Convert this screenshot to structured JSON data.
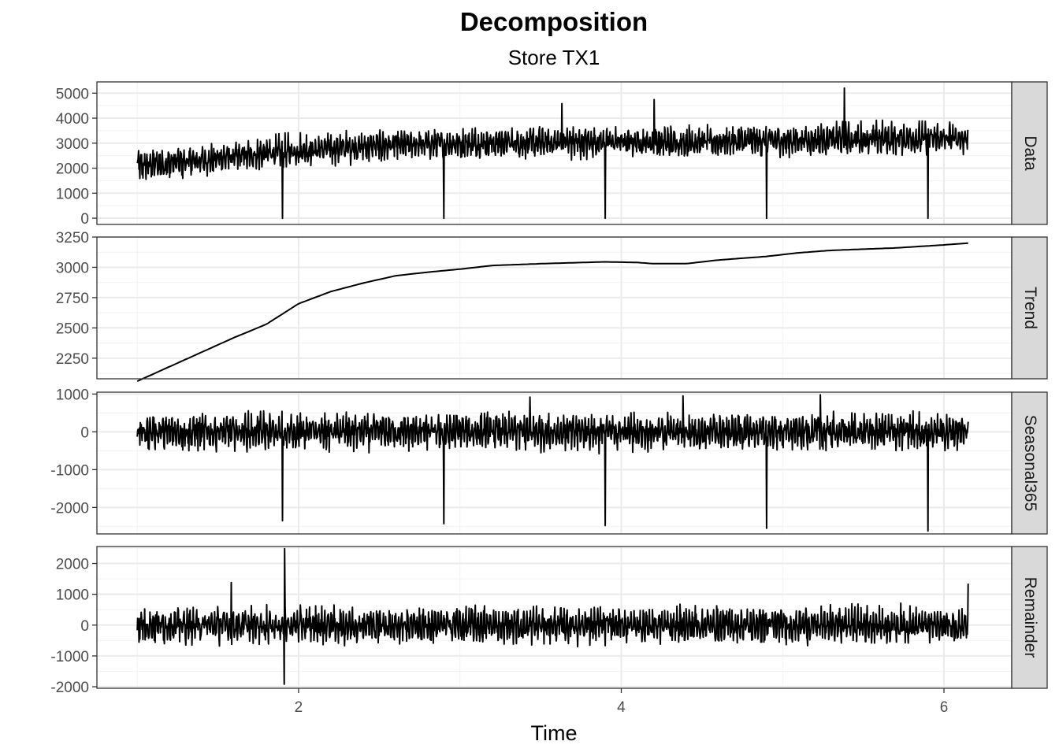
{
  "chart_data": {
    "type": "line",
    "title": "Decomposition",
    "subtitle": "Store TX1",
    "xlabel": "Time",
    "x_ticks": [
      2,
      4,
      6
    ],
    "xlim": [
      0.75,
      6.42
    ],
    "x_start": 1.0,
    "x_end": 6.15,
    "grid": true,
    "panels": [
      {
        "name": "Data",
        "ylim": [
          -250,
          5450
        ],
        "y_ticks": [
          0,
          1000,
          2000,
          3000,
          4000,
          5000
        ],
        "kind": "noisy",
        "trend_knots": [
          [
            1.0,
            2100
          ],
          [
            1.3,
            2250
          ],
          [
            1.6,
            2450
          ],
          [
            2.0,
            2700
          ],
          [
            2.4,
            2870
          ],
          [
            2.8,
            2960
          ],
          [
            3.3,
            3020
          ],
          [
            3.9,
            3045
          ],
          [
            4.3,
            3035
          ],
          [
            4.8,
            3090
          ],
          [
            5.3,
            3150
          ],
          [
            6.15,
            3200
          ]
        ],
        "base_offset": 0,
        "noise_amplitude": 550,
        "spikes": [
          [
            1.9,
            0
          ],
          [
            2.9,
            0
          ],
          [
            3.9,
            0
          ],
          [
            4.9,
            0
          ],
          [
            5.9,
            0
          ]
        ],
        "peaks": [
          [
            5.38,
            5200
          ],
          [
            3.63,
            4580
          ],
          [
            4.2,
            4740
          ]
        ]
      },
      {
        "name": "Trend",
        "ylim": [
          2080,
          3250
        ],
        "y_ticks": [
          2250,
          2500,
          2750,
          3000,
          3250
        ],
        "kind": "smooth",
        "trend_knots": [
          [
            1.0,
            2060
          ],
          [
            1.2,
            2180
          ],
          [
            1.4,
            2300
          ],
          [
            1.6,
            2420
          ],
          [
            1.8,
            2530
          ],
          [
            2.0,
            2700
          ],
          [
            2.2,
            2800
          ],
          [
            2.4,
            2870
          ],
          [
            2.6,
            2930
          ],
          [
            2.8,
            2960
          ],
          [
            3.0,
            2985
          ],
          [
            3.2,
            3015
          ],
          [
            3.5,
            3030
          ],
          [
            3.9,
            3045
          ],
          [
            4.1,
            3040
          ],
          [
            4.2,
            3030
          ],
          [
            4.4,
            3030
          ],
          [
            4.6,
            3060
          ],
          [
            4.9,
            3090
          ],
          [
            5.1,
            3120
          ],
          [
            5.3,
            3140
          ],
          [
            5.7,
            3160
          ],
          [
            6.0,
            3185
          ],
          [
            6.15,
            3200
          ]
        ]
      },
      {
        "name": "Seasonal365",
        "ylim": [
          -2700,
          1050
        ],
        "y_ticks": [
          -2000,
          -1000,
          0,
          1000
        ],
        "kind": "noisy",
        "base_offset": 0,
        "noise_amplitude": 420,
        "spikes": [
          [
            1.9,
            -2350
          ],
          [
            2.9,
            -2430
          ],
          [
            3.9,
            -2480
          ],
          [
            4.9,
            -2550
          ],
          [
            5.9,
            -2620
          ]
        ],
        "peaks": [
          [
            5.23,
            980
          ],
          [
            4.38,
            950
          ],
          [
            3.43,
            920
          ]
        ]
      },
      {
        "name": "Remainder",
        "ylim": [
          -2050,
          2550
        ],
        "y_ticks": [
          -2000,
          -1000,
          0,
          1000,
          2000
        ],
        "kind": "noisy",
        "base_offset": 0,
        "noise_amplitude": 520,
        "spikes": [
          [
            1.91,
            -1920
          ]
        ],
        "peaks": [
          [
            1.91,
            2480
          ],
          [
            6.15,
            1350
          ],
          [
            1.58,
            1380
          ]
        ]
      }
    ]
  }
}
